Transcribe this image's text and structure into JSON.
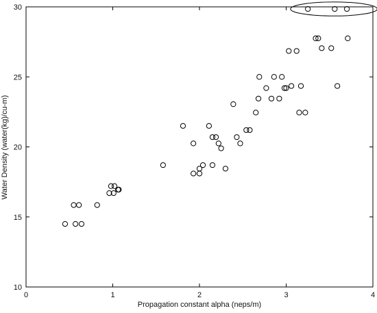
{
  "chart_data": {
    "type": "scatter",
    "title": "",
    "xlabel": "Propagation constant alpha (neps/m)",
    "ylabel": "Water Density (water(kg)/cu-m)",
    "xlim": [
      0,
      4
    ],
    "ylim": [
      10,
      30
    ],
    "xticks": [
      0,
      1,
      2,
      3,
      4
    ],
    "yticks": [
      10,
      15,
      20,
      25,
      30
    ],
    "xtick_labels": [
      "0",
      "1",
      "2",
      "3",
      "4"
    ],
    "ytick_labels": [
      "10",
      "15",
      "20",
      "25",
      "30"
    ],
    "grid": false,
    "marker": "open-circle",
    "colors": {
      "axis": "#000000",
      "marker": "#000000",
      "annotation": "#000000"
    },
    "annotation": {
      "type": "ellipse",
      "center": [
        3.55,
        29.85
      ],
      "rx": 0.5,
      "ry": 0.5
    },
    "points": [
      [
        0.45,
        14.5
      ],
      [
        0.57,
        14.5
      ],
      [
        0.64,
        14.5
      ],
      [
        0.55,
        15.85
      ],
      [
        0.61,
        15.85
      ],
      [
        0.82,
        15.85
      ],
      [
        0.96,
        16.7
      ],
      [
        1.01,
        16.7
      ],
      [
        1.06,
        16.95
      ],
      [
        1.07,
        16.95
      ],
      [
        0.98,
        17.2
      ],
      [
        1.02,
        17.2
      ],
      [
        1.58,
        18.7
      ],
      [
        1.81,
        21.5
      ],
      [
        1.93,
        20.25
      ],
      [
        1.93,
        18.1
      ],
      [
        2.0,
        18.1
      ],
      [
        2.0,
        18.45
      ],
      [
        2.04,
        18.7
      ],
      [
        2.11,
        21.5
      ],
      [
        2.15,
        20.7
      ],
      [
        2.15,
        18.7
      ],
      [
        2.19,
        20.7
      ],
      [
        2.22,
        20.25
      ],
      [
        2.25,
        19.9
      ],
      [
        2.3,
        18.45
      ],
      [
        2.39,
        23.05
      ],
      [
        2.43,
        20.7
      ],
      [
        2.47,
        20.25
      ],
      [
        2.54,
        21.2
      ],
      [
        2.58,
        21.2
      ],
      [
        2.65,
        22.45
      ],
      [
        2.68,
        23.45
      ],
      [
        2.69,
        25.0
      ],
      [
        2.77,
        24.2
      ],
      [
        2.83,
        23.45
      ],
      [
        2.86,
        25.0
      ],
      [
        2.92,
        23.45
      ],
      [
        2.95,
        25.0
      ],
      [
        2.98,
        24.2
      ],
      [
        3.0,
        24.2
      ],
      [
        3.03,
        26.85
      ],
      [
        3.06,
        24.35
      ],
      [
        3.12,
        26.85
      ],
      [
        3.15,
        22.45
      ],
      [
        3.17,
        24.35
      ],
      [
        3.22,
        22.45
      ],
      [
        3.25,
        29.85
      ],
      [
        3.34,
        27.75
      ],
      [
        3.37,
        27.75
      ],
      [
        3.41,
        27.05
      ],
      [
        3.52,
        27.05
      ],
      [
        3.56,
        29.85
      ],
      [
        3.59,
        24.35
      ],
      [
        3.7,
        29.85
      ],
      [
        3.71,
        27.75
      ]
    ]
  }
}
